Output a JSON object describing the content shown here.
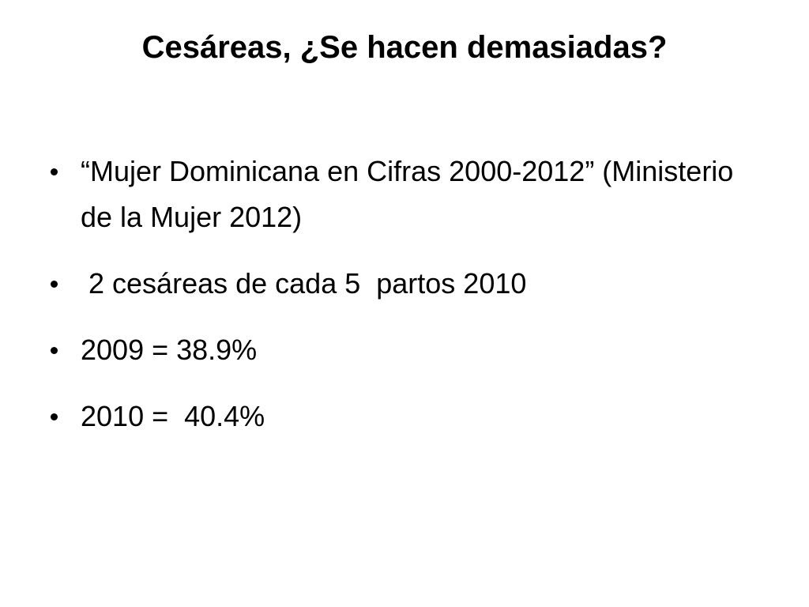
{
  "title": "Cesáreas, ¿Se hacen demasiadas?",
  "bullets": [
    "“Mujer Dominicana en Cifras 2000-2012” (Ministerio de la Mujer 2012)",
    " 2 cesáreas de cada 5  partos 2010",
    "2009 = 38.9%",
    "2010 =  40.4%"
  ]
}
